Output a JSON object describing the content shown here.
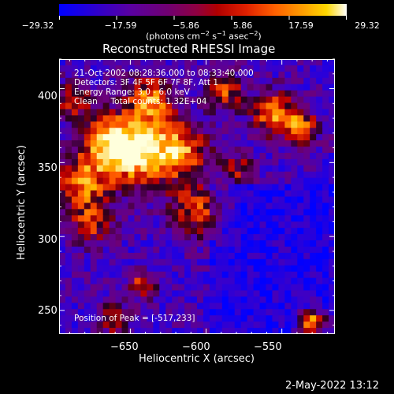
{
  "colorbar": {
    "ticks": [
      "−29.32",
      "−17.59",
      "−5.86",
      "5.86",
      "17.59",
      "29.32"
    ],
    "tick_values": [
      -29.32,
      -17.59,
      -5.86,
      5.86,
      17.59,
      29.32
    ]
  },
  "chart_data": {
    "type": "heatmap",
    "title": "Reconstructed RHESSI Image",
    "xlabel": "Heliocentric X (arcsec)",
    "ylabel": "Heliocentric Y (arcsec)",
    "xlim": [
      -697,
      -515
    ],
    "ylim": [
      234,
      420
    ],
    "xticks": [
      -650,
      -600,
      -550
    ],
    "yticks": [
      250,
      300,
      350,
      400
    ],
    "xtick_labels": [
      "−650",
      "−600",
      "−550"
    ],
    "ytick_labels": [
      "250",
      "300",
      "350",
      "400"
    ],
    "colorbar_range": [
      -29.32,
      29.32
    ],
    "colorbar_unit_parts": [
      "(photons cm",
      "−2",
      " s",
      "−1",
      " asec",
      "−2",
      ")"
    ],
    "annotations": {
      "line1": "21-Oct-2002 08:28:36.000 to 08:33:40.000",
      "line2": "Detectors: 3F 4F 5F 6F 7F 8F, Att 1",
      "line3": "Energy Range: 3.0 - 6.0 keV",
      "line4": "Clean     Total counts: 1.32E+04",
      "peak": "Position of Peak = [-517,233]"
    },
    "peak_position": [
      -517,
      233
    ],
    "total_counts": 13200,
    "energy_range_kev": [
      3.0,
      6.0
    ]
  },
  "footer": {
    "date": "2-May-2022 13:12"
  }
}
